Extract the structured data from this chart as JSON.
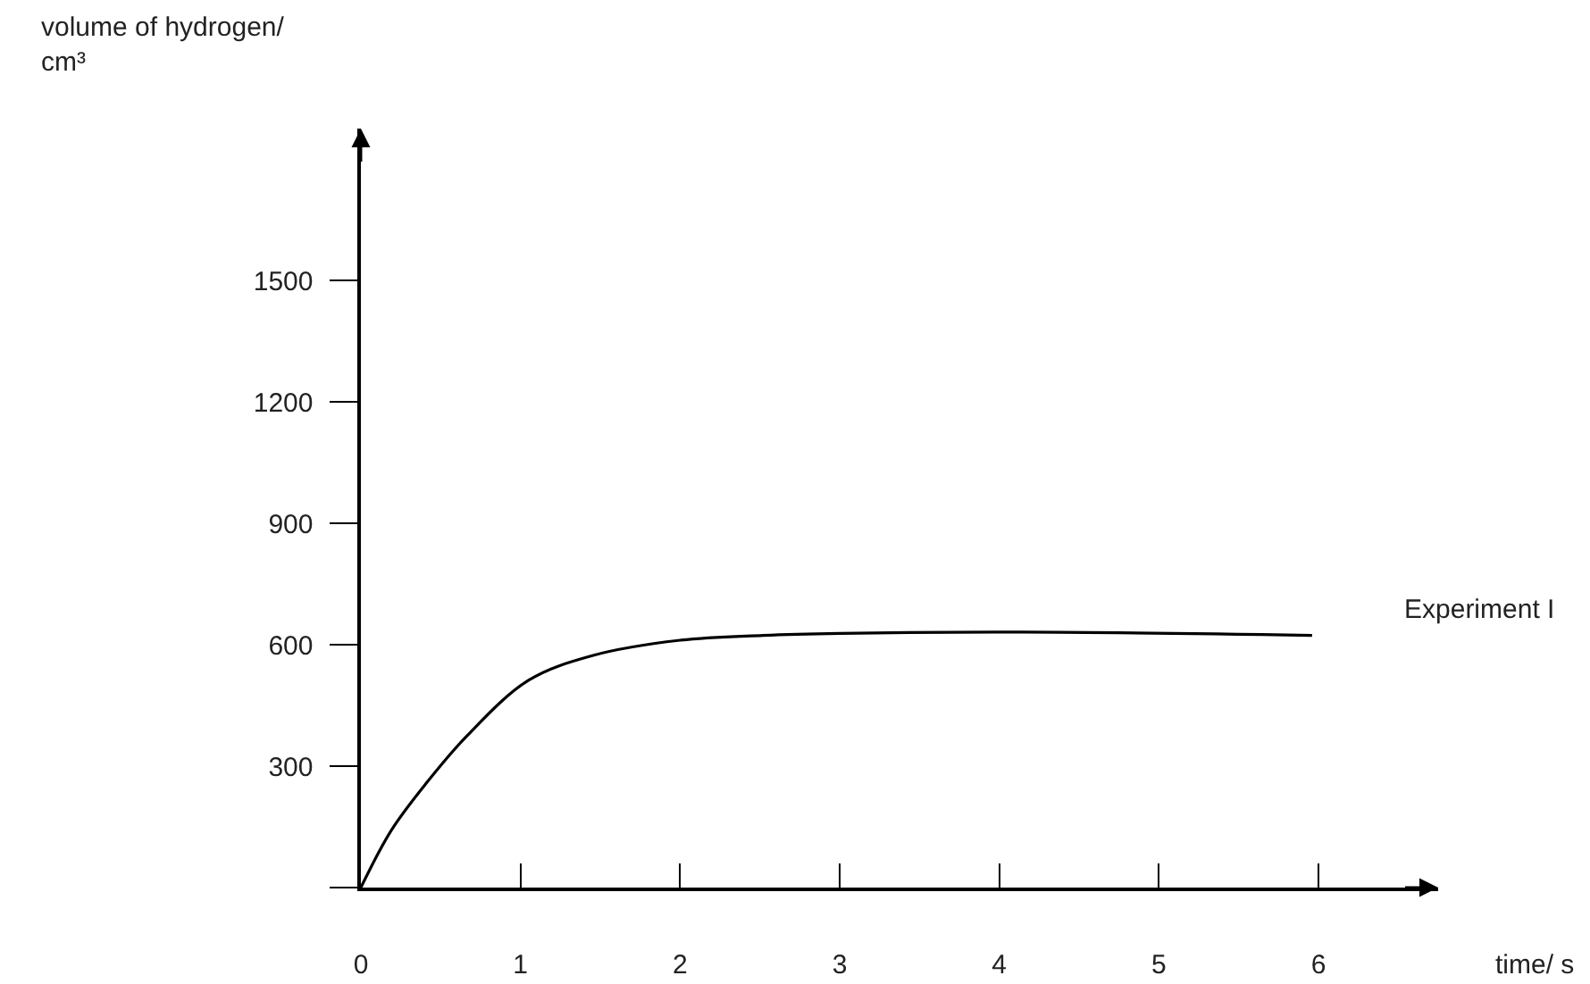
{
  "chart_data": {
    "type": "line",
    "xlabel": "time/ s",
    "ylabel": "volume of hydrogen/\ncm³",
    "x": [
      0,
      0.19,
      0.41,
      0.67,
      1.05,
      1.45,
      2.0,
      2.52,
      3.0,
      4.15,
      5.96
    ],
    "series": [
      {
        "name": "Experiment I",
        "color": "#000000",
        "values": [
          0,
          141,
          258,
          377,
          512,
          573,
          611,
          623,
          628,
          631,
          623
        ]
      }
    ],
    "xlim": [
      0,
      6.75
    ],
    "ylim": [
      0,
      1875
    ],
    "xticks": [
      0,
      1,
      2,
      3,
      4,
      5,
      6
    ],
    "yticks": [
      {
        "value": 0,
        "label": null
      },
      300,
      600,
      900,
      1200,
      1500
    ],
    "grid": false,
    "legend": false,
    "marker": "none",
    "line_style": "solid"
  }
}
